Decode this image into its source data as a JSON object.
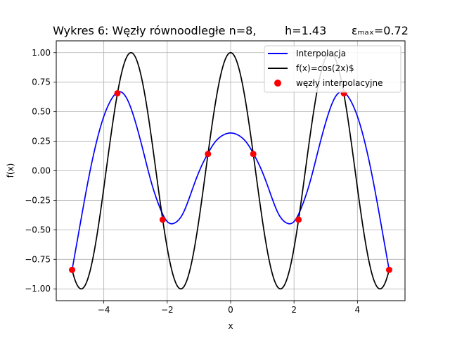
{
  "chart_data": {
    "type": "line",
    "title": "Wykres 6: Węzły równoodległe n=8,        h=1.43       εₘₐₓ=0.72",
    "xlabel": "x",
    "ylabel": "f(x)",
    "xlim": [
      -5.5,
      5.5
    ],
    "ylim": [
      -1.1,
      1.1
    ],
    "xticks": [
      -4,
      -2,
      0,
      2,
      4
    ],
    "yticks": [
      -1.0,
      -0.75,
      -0.5,
      -0.25,
      0.0,
      0.25,
      0.5,
      0.75,
      1.0
    ],
    "xtick_labels": [
      "−4",
      "−2",
      "0",
      "2",
      "4"
    ],
    "ytick_labels": [
      "−1.00",
      "−0.75",
      "−0.50",
      "−0.25",
      "0.00",
      "0.25",
      "0.50",
      "0.75",
      "1.00"
    ],
    "grid": true,
    "legend_position": "top-right",
    "series": [
      {
        "name": "Interpolacja",
        "kind": "line",
        "color": "#0000ff",
        "x": [
          -5.0,
          -4.75,
          -4.5,
          -4.25,
          -4.0,
          -3.75,
          -3.5,
          -3.25,
          -3.0,
          -2.75,
          -2.5,
          -2.25,
          -2.0,
          -1.75,
          -1.5,
          -1.25,
          -1.0,
          -0.75,
          -0.5,
          -0.25,
          0.0,
          0.25,
          0.5,
          0.75,
          1.0,
          1.25,
          1.5,
          1.75,
          2.0,
          2.25,
          2.5,
          2.75,
          3.0,
          3.25,
          3.5,
          3.75,
          4.0,
          4.25,
          4.5,
          4.75,
          5.0
        ],
        "y": [
          -0.839,
          -0.46,
          -0.092,
          0.222,
          0.46,
          0.61,
          0.67,
          0.599,
          0.41,
          0.16,
          -0.099,
          -0.3,
          -0.43,
          -0.44,
          -0.36,
          -0.19,
          -0.01,
          0.13,
          0.24,
          0.3,
          0.32,
          0.3,
          0.24,
          0.13,
          -0.01,
          -0.19,
          -0.36,
          -0.44,
          -0.43,
          -0.3,
          -0.099,
          0.16,
          0.41,
          0.599,
          0.67,
          0.61,
          0.46,
          0.222,
          -0.092,
          -0.46,
          -0.839
        ]
      },
      {
        "name": "f(x)=cos(2x)$",
        "kind": "function",
        "color": "#000000",
        "x_range": [
          -5.0,
          5.0
        ]
      },
      {
        "name": "węzły interpolacyjne",
        "kind": "scatter",
        "color": "#ff0000",
        "x": [
          -5.0,
          -3.571,
          -2.143,
          -0.714,
          0.714,
          2.143,
          3.571,
          5.0
        ],
        "y": [
          -0.839,
          0.656,
          -0.414,
          0.142,
          0.142,
          -0.414,
          0.656,
          -0.839
        ]
      }
    ]
  }
}
